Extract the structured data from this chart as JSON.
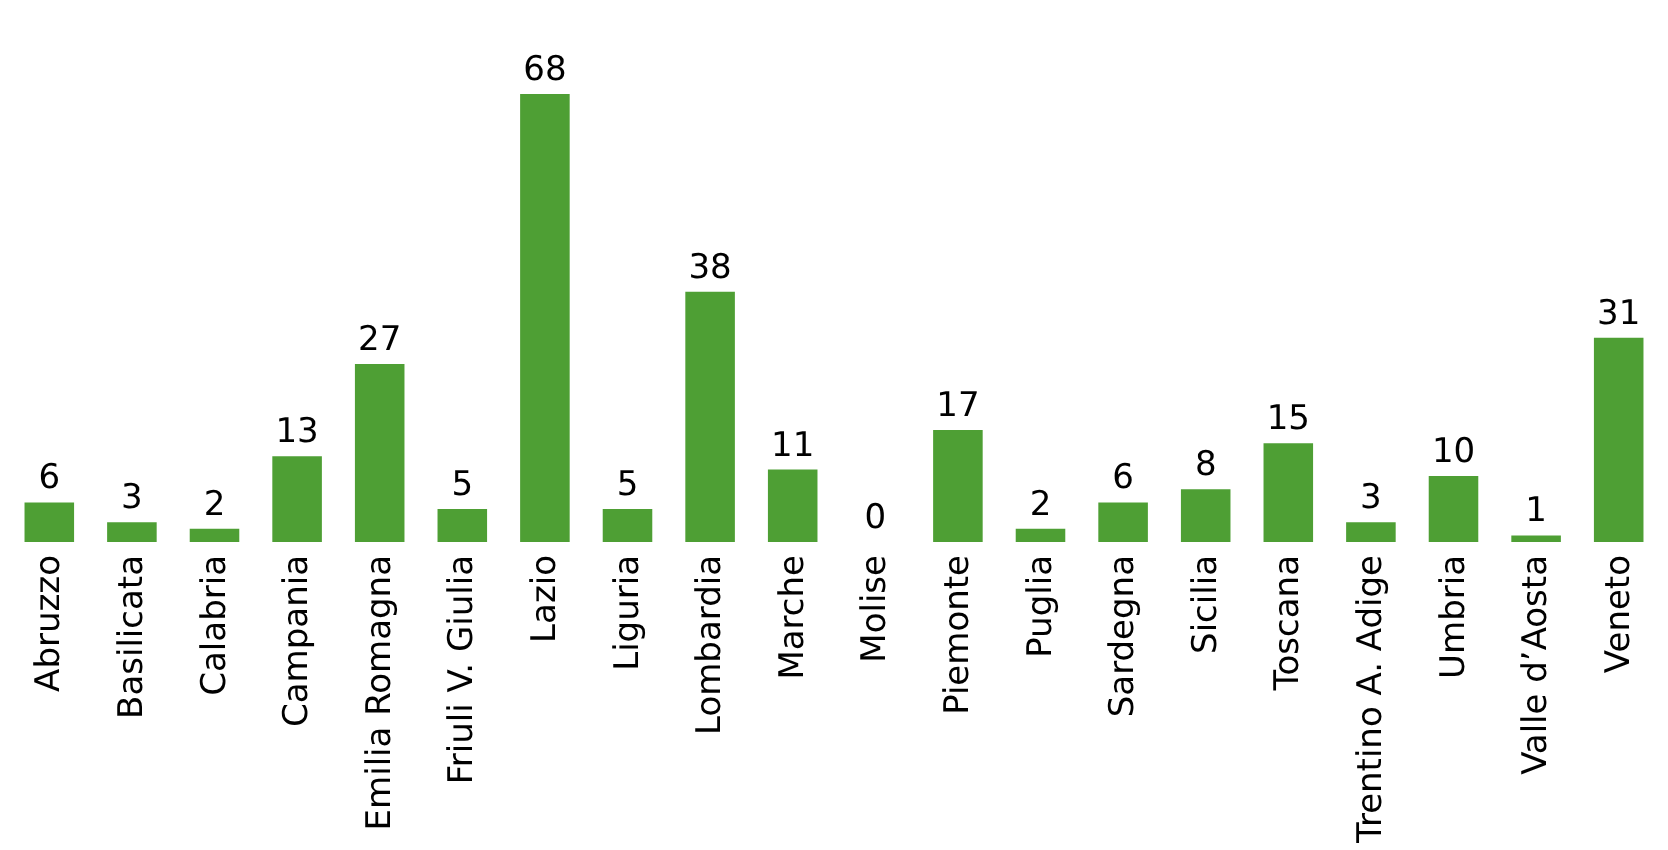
{
  "chart_data": {
    "type": "bar",
    "categories": [
      "Abruzzo",
      "Basilicata",
      "Calabria",
      "Campania",
      "Emilia Romagna",
      "Friuli V. Giulia",
      "Lazio",
      "Liguria",
      "Lombardia",
      "Marche",
      "Molise",
      "Piemonte",
      "Puglia",
      "Sardegna",
      "Sicilia",
      "Toscana",
      "Trentino A. Adige",
      "Umbria",
      "Valle d’Aosta",
      "Veneto"
    ],
    "values": [
      6,
      3,
      2,
      13,
      27,
      5,
      68,
      5,
      38,
      11,
      0,
      17,
      2,
      6,
      8,
      15,
      3,
      10,
      1,
      31
    ],
    "color": "#4e9f34",
    "data_labels": true,
    "grid": false
  }
}
